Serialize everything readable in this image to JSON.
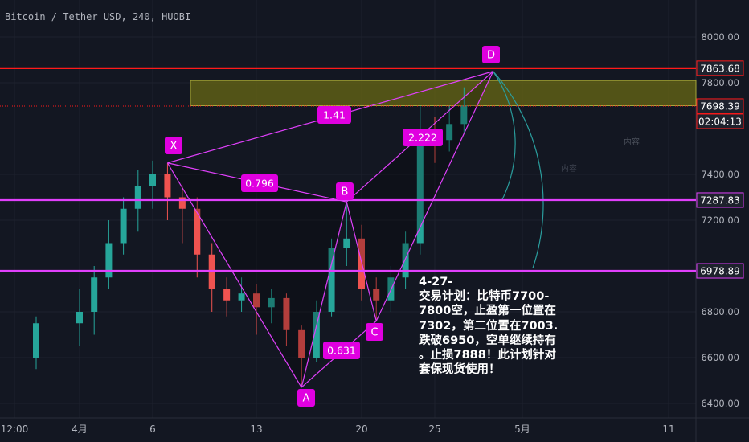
{
  "header": {
    "title": "Bitcoin / Tether USD, 240, HUOBI"
  },
  "colors": {
    "background": "#131722",
    "grid": "#1e222d",
    "text": "#b2b5be",
    "up": "#26a69a",
    "down": "#ef5350",
    "pattern": "#e040fb",
    "label_bg": "#e000e0",
    "red_line": "#ff1a1a",
    "zone": "#6b6b14",
    "arc": "#2a9d9d",
    "axis_label_bg": "#1e222d"
  },
  "chart_data": {
    "type": "candlestick",
    "title": "Bitcoin / Tether USD, 240, HUOBI",
    "y_ticks": [
      "8000.00",
      "7800.00",
      "7400.00",
      "7200.00",
      "6800.00",
      "6600.00",
      "6400.00"
    ],
    "x_ticks": [
      "12:00",
      "4月",
      "6",
      "13",
      "20",
      "25",
      "5月",
      "11"
    ],
    "ylim": [
      6340,
      8180
    ],
    "candles_approx": [
      [
        "03-30",
        6600,
        6750,
        6550,
        6780
      ],
      [
        "04-01",
        6750,
        6800,
        6650,
        6900
      ],
      [
        "04-02",
        6800,
        6950,
        6700,
        7000
      ],
      [
        "04-03",
        6950,
        7100,
        6900,
        7200
      ],
      [
        "04-04",
        7100,
        7250,
        7050,
        7300
      ],
      [
        "04-05",
        7250,
        7350,
        7150,
        7420
      ],
      [
        "04-06",
        7350,
        7400,
        7250,
        7460
      ],
      [
        "04-07",
        7400,
        7300,
        7200,
        7450
      ],
      [
        "04-08",
        7300,
        7250,
        7100,
        7350
      ],
      [
        "04-09",
        7250,
        7050,
        6950,
        7300
      ],
      [
        "04-10",
        7050,
        6900,
        6800,
        7100
      ],
      [
        "04-11",
        6900,
        6850,
        6780,
        6950
      ],
      [
        "04-12",
        6850,
        6880,
        6800,
        6950
      ],
      [
        "04-13",
        6880,
        6820,
        6700,
        6920
      ],
      [
        "04-14",
        6820,
        6860,
        6750,
        6900
      ],
      [
        "04-15",
        6860,
        6720,
        6650,
        6880
      ],
      [
        "04-16",
        6720,
        6600,
        6470,
        6740
      ],
      [
        "04-17",
        6600,
        6800,
        6580,
        6850
      ],
      [
        "04-18",
        6800,
        7080,
        6780,
        7120
      ],
      [
        "04-19",
        7080,
        7120,
        7000,
        7280
      ],
      [
        "04-20",
        7120,
        6900,
        6850,
        7180
      ],
      [
        "04-21",
        6900,
        6850,
        6760,
        6950
      ],
      [
        "04-22",
        6850,
        6950,
        6800,
        7000
      ],
      [
        "04-23",
        6950,
        7100,
        6900,
        7150
      ],
      [
        "04-24",
        7100,
        7600,
        7050,
        7700
      ],
      [
        "04-25",
        7600,
        7550,
        7450,
        7650
      ],
      [
        "04-26",
        7550,
        7620,
        7500,
        7700
      ],
      [
        "04-27",
        7620,
        7700,
        7580,
        7780
      ]
    ],
    "xabcd": {
      "X": [
        "04-07",
        7450
      ],
      "A": [
        "04-16",
        6470
      ],
      "B": [
        "04-19",
        7280
      ],
      "C": [
        "04-21",
        6760
      ],
      "D": [
        "04-29",
        7850
      ]
    },
    "ratios": {
      "xb": "0.796",
      "ac": "0.631",
      "bd": "2.222",
      "xd": "1.41"
    },
    "levels": {
      "d_level": {
        "value": 7863.68,
        "label": "7863.68"
      },
      "last": {
        "value": 7698.39,
        "label": "7698.39"
      },
      "countdown": "02:04:13",
      "level2": {
        "value": 7287.83,
        "label": "7287.83"
      },
      "level3": {
        "value": 6978.89,
        "label": "6978.89"
      }
    },
    "zone": [
      7700,
      7810
    ],
    "point_labels": [
      "X",
      "A",
      "B",
      "C",
      "D"
    ],
    "watermark": [
      "内容",
      "内容"
    ],
    "annotation": "4-27-\n交易计划：比特币7700-\n7800空，止盈第一位置在\n7302，第二位置在7003.\n跌破6950，空单继续持有\n。止损7888！此计划针对\n套保现货使用！"
  }
}
